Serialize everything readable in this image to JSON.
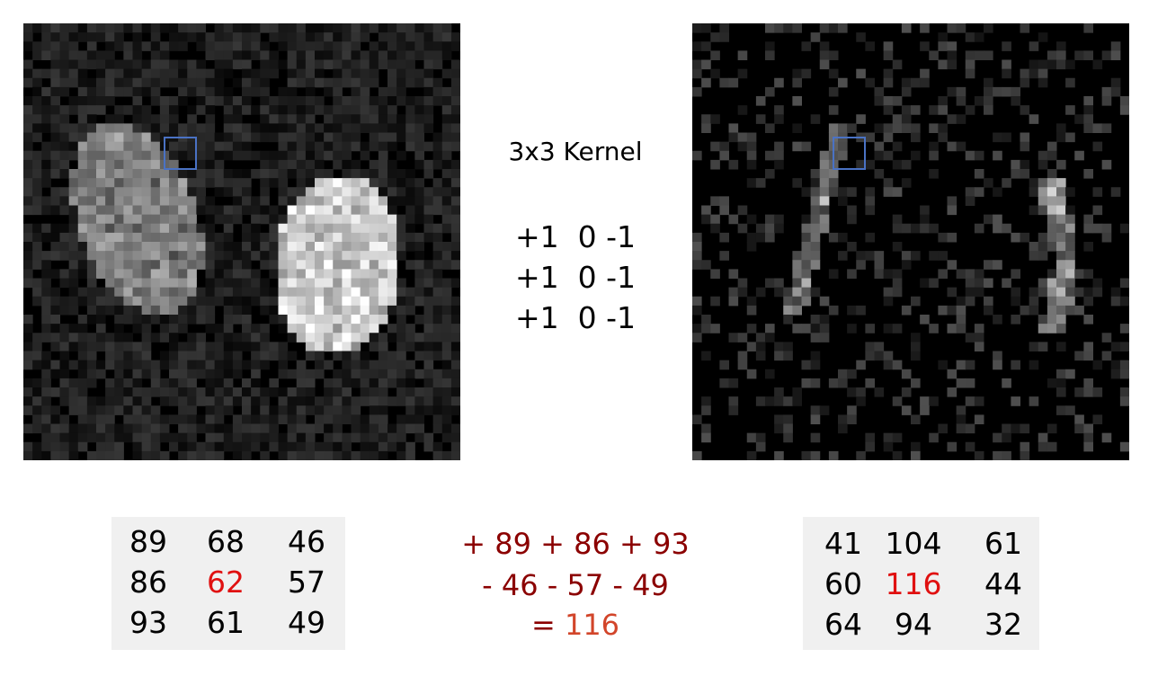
{
  "kernel": {
    "title": "3x3 Kernel",
    "rows": [
      "+1  0 -1",
      "+1  0 -1",
      "+1  0 -1"
    ]
  },
  "input_patch": {
    "values": [
      [
        "89",
        "68",
        "46"
      ],
      [
        "86",
        "62",
        "57"
      ],
      [
        "93",
        "61",
        "49"
      ]
    ],
    "highlight": "62"
  },
  "output_patch": {
    "values": [
      [
        "41",
        "104",
        "61"
      ],
      [
        "60",
        "116",
        "44"
      ],
      [
        "64",
        "94",
        "32"
      ]
    ],
    "highlight": "116"
  },
  "calculation": {
    "line1": "+ 89 + 86 + 93",
    "line2": "- 46 - 57 - 49",
    "equals": "= ",
    "result": "116"
  },
  "colors": {
    "selection_box": "#4a72c4",
    "highlight": "#e01010",
    "calc_text": "#8b0000",
    "result": "#d2452a"
  }
}
